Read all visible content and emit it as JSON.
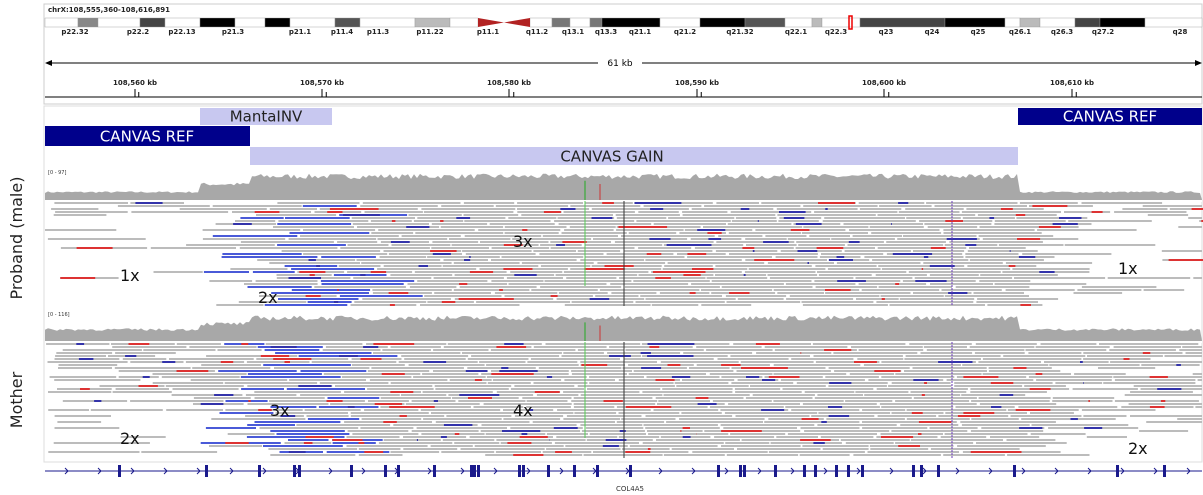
{
  "locus": "chrX:108,555,360-108,616,891",
  "cytobands": [
    "p22.32",
    "p22.2",
    "p22.13",
    "p21.3",
    "p21.1",
    "p11.4",
    "p11.3",
    "p11.22",
    "p11.1",
    "q11.2",
    "q13.1",
    "q13.3",
    "q21.1",
    "q21.2",
    "q21.32",
    "q22.1",
    "q22.3",
    "q23",
    "q24",
    "q25",
    "q26.1",
    "q26.3",
    "q27.2",
    "q28"
  ],
  "ruler": {
    "span": "61 kb",
    "ticks": [
      "108,560 kb",
      "108,570 kb",
      "108,580 kb",
      "108,590 kb",
      "108,600 kb",
      "108,610 kb"
    ]
  },
  "features": [
    {
      "label": "MantaINV"
    },
    {
      "label": "CANVAS REF"
    },
    {
      "label": "CANVAS REF"
    },
    {
      "label": "CANVAS GAIN"
    }
  ],
  "tracks": [
    {
      "name": "Proband (male)",
      "range": "[0 - 97]",
      "annotations": [
        "1x",
        "2x",
        "3x",
        "1x"
      ]
    },
    {
      "name": "Mother",
      "range": "[0 - 116]",
      "annotations": [
        "3x",
        "4x",
        "2x",
        "2x"
      ]
    }
  ],
  "gene": "COL4A5"
}
